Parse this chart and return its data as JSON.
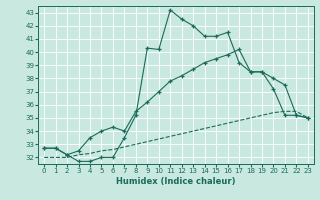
{
  "xlabel": "Humidex (Indice chaleur)",
  "background_color": "#c8e8e0",
  "grid_color": "#ffffff",
  "line_color": "#1a6b5a",
  "xlim": [
    -0.5,
    23.5
  ],
  "ylim": [
    31.5,
    43.5
  ],
  "xticks": [
    0,
    1,
    2,
    3,
    4,
    5,
    6,
    7,
    8,
    9,
    10,
    11,
    12,
    13,
    14,
    15,
    16,
    17,
    18,
    19,
    20,
    21,
    22,
    23
  ],
  "yticks": [
    32,
    33,
    34,
    35,
    36,
    37,
    38,
    39,
    40,
    41,
    42,
    43
  ],
  "series": [
    {
      "x": [
        0,
        1,
        2,
        3,
        4,
        5,
        6,
        7,
        8,
        9,
        10,
        11,
        12,
        13,
        14,
        15,
        16,
        17,
        18,
        19,
        20,
        21,
        22,
        23
      ],
      "y": [
        32.7,
        32.7,
        32.2,
        31.7,
        31.7,
        32.0,
        32.0,
        33.5,
        35.2,
        40.3,
        40.2,
        43.2,
        42.5,
        42.0,
        41.2,
        41.2,
        41.5,
        39.2,
        38.5,
        38.5,
        37.2,
        35.2,
        35.2,
        35.0
      ],
      "marker": true
    },
    {
      "x": [
        0,
        1,
        2,
        3,
        4,
        5,
        6,
        7,
        8,
        9,
        10,
        11,
        12,
        13,
        14,
        15,
        16,
        17,
        18,
        19,
        20,
        21,
        22,
        23
      ],
      "y": [
        32.7,
        32.7,
        32.2,
        32.5,
        33.5,
        34.0,
        34.3,
        34.0,
        35.5,
        36.2,
        37.0,
        37.8,
        38.2,
        38.7,
        39.2,
        39.5,
        39.8,
        40.2,
        38.5,
        38.5,
        38.0,
        37.5,
        35.2,
        35.0
      ],
      "marker": true
    },
    {
      "x": [
        0,
        1,
        2,
        3,
        4,
        5,
        6,
        7,
        8,
        9,
        10,
        11,
        12,
        13,
        14,
        15,
        16,
        17,
        18,
        19,
        20,
        21,
        22,
        23
      ],
      "y": [
        32.0,
        32.0,
        32.0,
        32.2,
        32.3,
        32.5,
        32.6,
        32.8,
        33.0,
        33.2,
        33.4,
        33.6,
        33.8,
        34.0,
        34.2,
        34.4,
        34.6,
        34.8,
        35.0,
        35.2,
        35.4,
        35.5,
        35.5,
        35.0
      ],
      "marker": false
    }
  ]
}
